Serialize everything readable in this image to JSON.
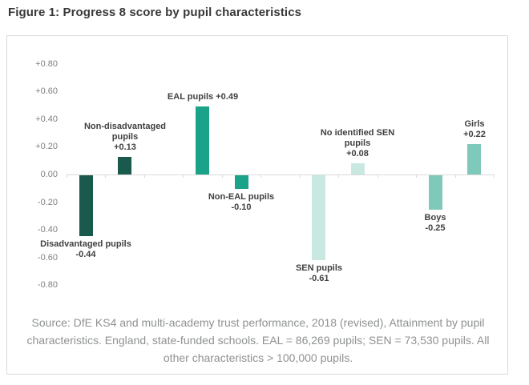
{
  "page": {
    "title": "Figure 1: Progress 8 score by pupil characteristics"
  },
  "chart_data": {
    "type": "bar",
    "title": "Figure 1: Progress 8 score by pupil characteristics",
    "categories": [
      "Disadvantaged pupils",
      "Non-disadvantaged pupils",
      "EAL pupils",
      "Non-EAL pupils",
      "SEN pupils",
      "No identified SEN pupils",
      "Boys",
      "Girls"
    ],
    "values": [
      -0.44,
      0.13,
      0.49,
      -0.1,
      -0.61,
      0.08,
      -0.25,
      0.22
    ],
    "value_labels": [
      "-0.44",
      "+0.13",
      "+0.49",
      "-0.10",
      "-0.61",
      "+0.08",
      "-0.25",
      "+0.22"
    ],
    "bar_colors": [
      "#1a5a4c",
      "#1a5a4c",
      "#1ba38a",
      "#1ba38a",
      "#c9e8e2",
      "#c9e8e2",
      "#7fc9bb",
      "#7fc9bb"
    ],
    "slots": [
      0,
      1,
      3,
      4,
      6,
      7,
      9,
      10
    ],
    "n_slots": 11,
    "bar_labels": [
      {
        "lines": [
          "Disadvantaged pupils",
          "-0.44"
        ],
        "position": "below"
      },
      {
        "lines": [
          "Non-disadvantaged",
          "pupils",
          "+0.13"
        ],
        "position": "above"
      },
      {
        "lines": [
          "EAL pupils +0.49"
        ],
        "position": "above"
      },
      {
        "lines": [
          "Non-EAL pupils",
          "-0.10"
        ],
        "position": "below"
      },
      {
        "lines": [
          "SEN pupils",
          "-0.61"
        ],
        "position": "below"
      },
      {
        "lines": [
          "No identified SEN",
          "pupils",
          "+0.08"
        ],
        "position": "above"
      },
      {
        "lines": [
          "Boys",
          "-0.25"
        ],
        "position": "below"
      },
      {
        "lines": [
          "Girls",
          "+0.22"
        ],
        "position": "above"
      }
    ],
    "y_ticks": [
      "+0.80",
      "+0.60",
      "+0.40",
      "+0.20",
      "0.00",
      "-0.20",
      "-0.40",
      "-0.60",
      "-0.80"
    ],
    "ylim": [
      -0.8,
      0.8
    ],
    "xlabel": "",
    "ylabel": "",
    "grid": false,
    "legend": null,
    "axis_color": "#d9d9d9"
  },
  "source_note": "Source: DfE KS4 and multi-academy trust performance, 2018 (revised), Attainment by pupil characteristics. England, state-funded schools. EAL = 86,269 pupils; SEN = 73,530 pupils. All other characteristics > 100,000 pupils."
}
